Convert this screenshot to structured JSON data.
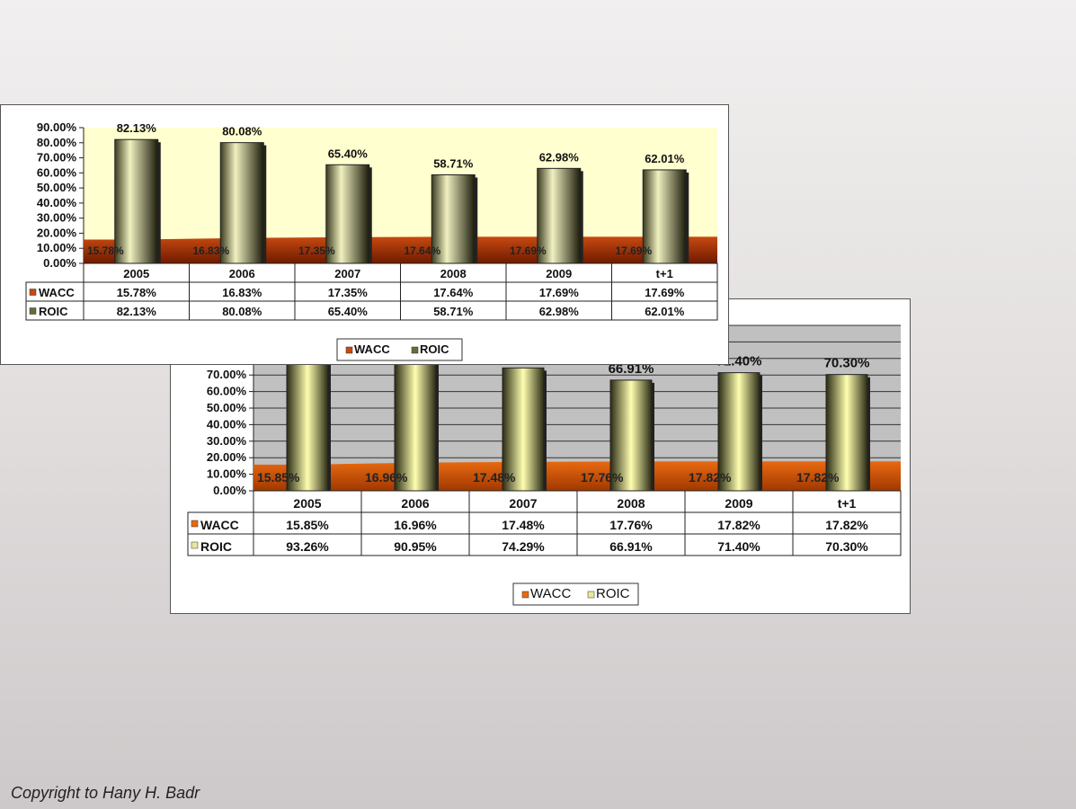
{
  "chart_data": [
    {
      "type": "bar",
      "categories": [
        "2005",
        "2006",
        "2007",
        "2008",
        "2009",
        "t+1"
      ],
      "ylim": [
        0,
        90
      ],
      "y_ticks": [
        "0.00%",
        "10.00%",
        "20.00%",
        "30.00%",
        "40.00%",
        "50.00%",
        "60.00%",
        "70.00%",
        "80.00%",
        "90.00%"
      ],
      "grid": false,
      "legend": "bottom",
      "plot_background": "#ffffd0",
      "series": [
        {
          "name": "WACC",
          "render": "area",
          "color": "#c84a10",
          "values": [
            15.78,
            16.83,
            17.35,
            17.64,
            17.69,
            17.69
          ],
          "labels": [
            "15.78%",
            "16.83%",
            "17.35%",
            "17.64%",
            "17.69%",
            "17.69%"
          ]
        },
        {
          "name": "ROIC",
          "render": "bar",
          "color": "#6b6b3a",
          "values": [
            82.13,
            80.08,
            65.4,
            58.71,
            62.98,
            62.01
          ],
          "labels": [
            "82.13%",
            "80.08%",
            "65.40%",
            "58.71%",
            "62.98%",
            "62.01%"
          ]
        }
      ]
    },
    {
      "type": "bar",
      "categories": [
        "2005",
        "2006",
        "2007",
        "2008",
        "2009",
        "t+1"
      ],
      "ylim": [
        0,
        100
      ],
      "y_ticks": [
        "0.00%",
        "10.00%",
        "20.00%",
        "30.00%",
        "40.00%",
        "50.00%",
        "60.00%",
        "70.00%"
      ],
      "grid": true,
      "legend": "bottom",
      "plot_background": "#c0c0c0",
      "series": [
        {
          "name": "WACC",
          "render": "area",
          "color": "#e86a10",
          "values": [
            15.85,
            16.96,
            17.48,
            17.76,
            17.82,
            17.82
          ],
          "labels": [
            "15.85%",
            "16.96%",
            "17.48%",
            "17.76%",
            "17.82%",
            "17.82%"
          ]
        },
        {
          "name": "ROIC",
          "render": "bar",
          "color": "#e8e89a",
          "values": [
            93.26,
            90.95,
            74.29,
            66.91,
            71.4,
            70.3
          ],
          "labels": [
            "93.26%",
            "90.95%",
            "74.29%",
            "66.91%",
            "71.40%",
            "70.30%"
          ]
        }
      ]
    }
  ],
  "footer": {
    "copyright": "Copyright to Hany H. Badr"
  }
}
